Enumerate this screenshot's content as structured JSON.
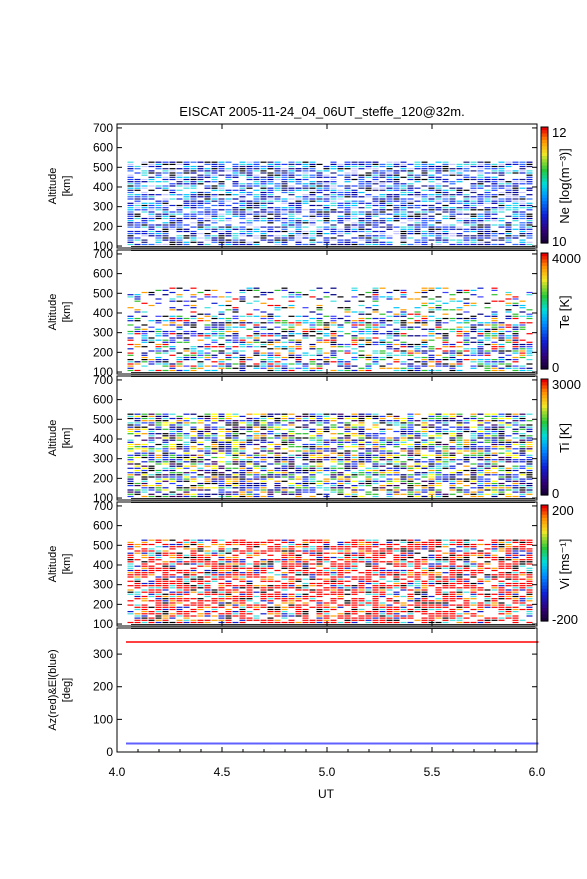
{
  "chart_data": {
    "title": "EISCAT 2005-11-24_04_06UT_steffe_120@32m.",
    "xlabel": "UT",
    "xlim": [
      4.0,
      6.0
    ],
    "x_ticks": [
      "4.0",
      "4.5",
      "5.0",
      "5.5",
      "6.0"
    ],
    "panels": [
      {
        "type": "heatmap",
        "ylabel": [
          "Altitude",
          "[km]"
        ],
        "ylim": [
          90,
          720
        ],
        "y_ticks": [
          "100",
          "200",
          "300",
          "400",
          "500",
          "600",
          "700"
        ],
        "colorbar": {
          "label": "Ne [log(m⁻³)]",
          "min_label": "10",
          "max_label": "12",
          "min": 10,
          "max": 12
        },
        "colors": [
          "#1020d0",
          "#2040ff",
          "#0000a0",
          "#3070ff",
          "#202080",
          "#000000",
          "#ffffff",
          "#00c8ff",
          "#40e0e0",
          "#c8c8ff"
        ]
      },
      {
        "type": "heatmap",
        "ylabel": [
          "Altitude",
          "[km]"
        ],
        "ylim": [
          90,
          720
        ],
        "y_ticks": [
          "100",
          "200",
          "300",
          "400",
          "500",
          "600",
          "700"
        ],
        "colorbar": {
          "label": "Te [K]",
          "min_label": "0",
          "max_label": "4000",
          "min": 0,
          "max": 4000
        },
        "colors": [
          "#1020d0",
          "#4040ff",
          "#000080",
          "#40e0e0",
          "#00c8ff",
          "#000000",
          "#ffffff",
          "#ff0000",
          "#ffa000",
          "#30c030"
        ]
      },
      {
        "type": "heatmap",
        "ylabel": [
          "Altitude",
          "[km]"
        ],
        "ylim": [
          90,
          720
        ],
        "y_ticks": [
          "100",
          "200",
          "300",
          "400",
          "500",
          "600",
          "700"
        ],
        "colorbar": {
          "label": "Ti [K]",
          "min_label": "0",
          "max_label": "3000",
          "min": 0,
          "max": 3000
        },
        "colors": [
          "#1020d0",
          "#2040ff",
          "#000080",
          "#400060",
          "#40e0e0",
          "#000000",
          "#ffffff",
          "#30c030",
          "#ffa000",
          "#ffff00"
        ]
      },
      {
        "type": "heatmap",
        "ylabel": [
          "Altitude",
          "[km]"
        ],
        "ylim": [
          90,
          720
        ],
        "y_ticks": [
          "100",
          "200",
          "300",
          "400",
          "500",
          "600",
          "700"
        ],
        "colorbar": {
          "label": "Vi [ms⁻¹]",
          "min_label": "-200",
          "max_label": "200",
          "min": -200,
          "max": 200
        },
        "colors": [
          "#ff0000",
          "#ff0000",
          "#ff0000",
          "#ff0000",
          "#ff0000",
          "#000000",
          "#ffffff",
          "#ffa000",
          "#40e0e0",
          "#1020d0"
        ]
      },
      {
        "type": "scatter",
        "ylabel": [
          "Az(red)&El(blue)",
          "[deg]"
        ],
        "ylim": [
          0,
          380
        ],
        "y_ticks": [
          "0",
          "100",
          "200",
          "300"
        ],
        "y_tick_values": [
          0,
          100,
          200,
          300
        ],
        "series": [
          {
            "name": "Az",
            "color": "#ff4040",
            "x_start": 4.05,
            "x_end": 6.0,
            "y": 337
          },
          {
            "name": "El",
            "color": "#6060ff",
            "x_start": 4.05,
            "x_end": 6.0,
            "y": 26
          }
        ]
      }
    ]
  }
}
